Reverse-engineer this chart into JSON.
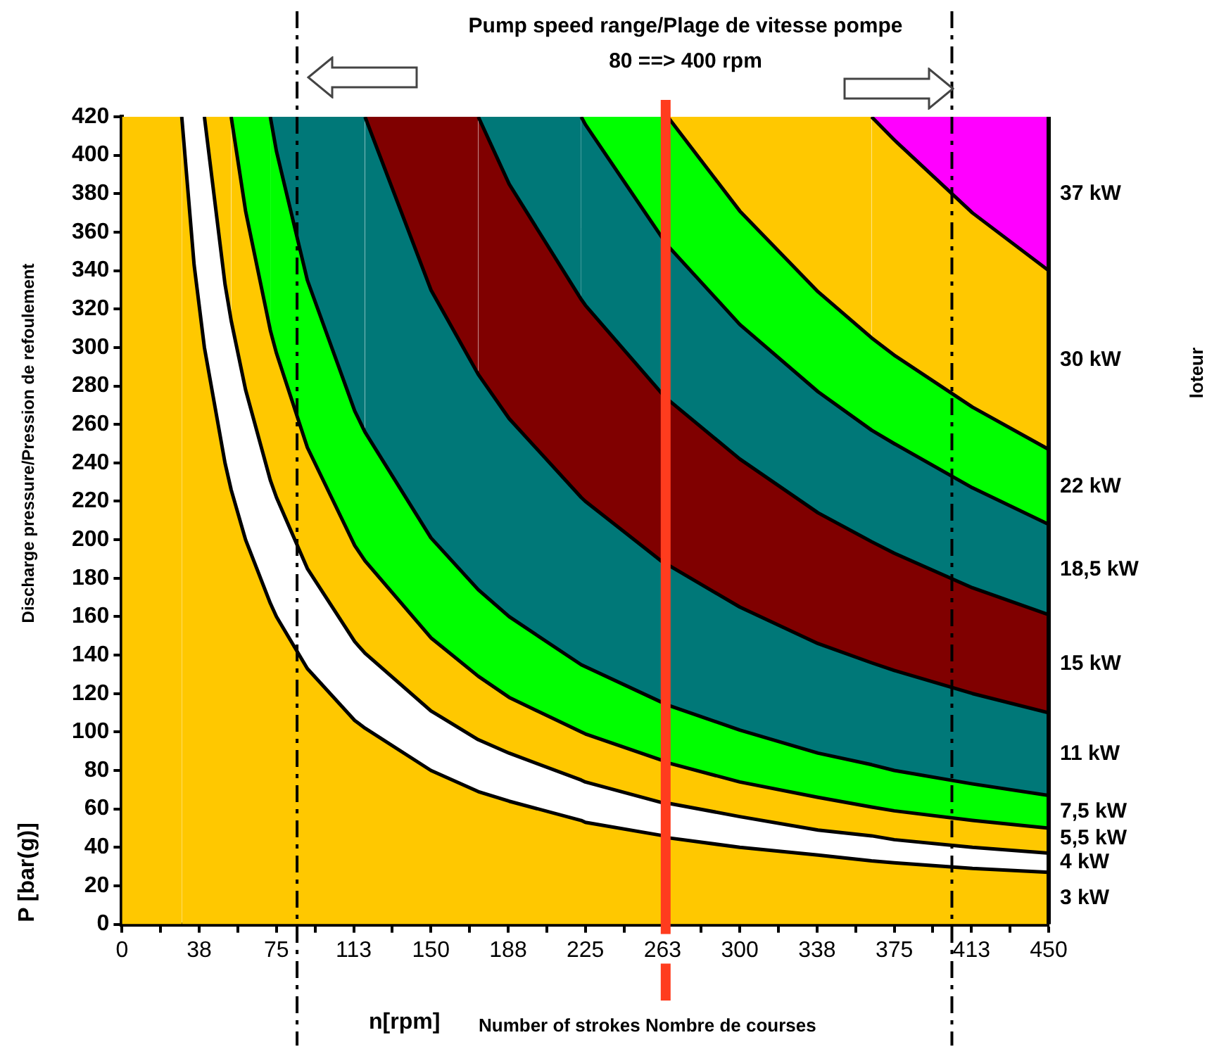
{
  "chart_data": {
    "type": "area",
    "stacked": true,
    "title": "Pump speed range/Plage de vitesse pompe",
    "subtitle": "80 ==> 400 rpm",
    "xlabel": "n[rpm]",
    "ylabel": "P [bar(g)]",
    "annotations": [
      "Number of strokes Nombre de courses",
      "Discharge pressure/Pression de refoulement",
      "loteur"
    ],
    "x": [
      0,
      29,
      35,
      40,
      50,
      53,
      60,
      72,
      75,
      90,
      113,
      118,
      150,
      173,
      188,
      223,
      225,
      263,
      265,
      300,
      338,
      364,
      375,
      413,
      450
    ],
    "series": [
      {
        "name": "3 kW",
        "color": "#ffc800",
        "values": [
          420,
          420,
          343,
          300,
          240,
          226,
          200,
          167,
          160,
          133,
          106,
          102,
          80,
          69,
          64,
          54,
          53,
          46,
          45,
          40,
          36,
          33,
          32,
          29,
          27
        ]
      },
      {
        "name": "4 kW",
        "color": "#ffffff",
        "values": [
          null,
          0,
          77,
          120,
          93,
          88,
          78,
          64,
          62,
          52,
          41,
          39,
          31,
          27,
          25,
          21,
          21,
          17,
          18,
          16,
          13,
          13,
          12,
          11,
          10
        ]
      },
      {
        "name": "5,5 kW",
        "color": "#ffc800",
        "values": [
          null,
          null,
          null,
          0,
          87,
          106,
          93,
          78,
          75,
          63,
          50,
          48,
          38,
          33,
          29,
          25,
          25,
          22,
          21,
          18,
          17,
          15,
          15,
          14,
          13
        ]
      },
      {
        "name": "7,5 kW",
        "color": "#00ff00",
        "values": [
          null,
          null,
          null,
          null,
          null,
          0,
          49,
          111,
          105,
          87,
          70,
          67,
          52,
          45,
          42,
          35,
          35,
          30,
          30,
          27,
          23,
          22,
          21,
          19,
          17
        ]
      },
      {
        "name": "11 kW",
        "color": "#007878",
        "values": [
          null,
          null,
          null,
          null,
          null,
          null,
          null,
          0,
          18,
          85,
          153,
          164,
          129,
          112,
          103,
          87,
          86,
          73,
          73,
          64,
          57,
          53,
          52,
          47,
          43
        ]
      },
      {
        "name": "15 kW",
        "color": "#800000",
        "values": [
          null,
          null,
          null,
          null,
          null,
          null,
          null,
          null,
          null,
          null,
          null,
          0,
          90,
          134,
          122,
          103,
          102,
          87,
          86,
          77,
          68,
          63,
          61,
          55,
          51
        ]
      },
      {
        "name": "18,5 kW",
        "color": "#007878",
        "values": [
          null,
          null,
          null,
          null,
          null,
          null,
          null,
          null,
          null,
          null,
          null,
          null,
          null,
          0,
          35,
          95,
          94,
          81,
          80,
          70,
          63,
          58,
          57,
          52,
          47
        ]
      },
      {
        "name": "22 kW",
        "color": "#00ff00",
        "values": [
          null,
          null,
          null,
          null,
          null,
          null,
          null,
          null,
          null,
          null,
          null,
          null,
          null,
          null,
          null,
          0,
          4,
          64,
          67,
          59,
          52,
          48,
          46,
          42,
          39
        ]
      },
      {
        "name": "30 kW",
        "color": "#ffc800",
        "values": [
          null,
          null,
          null,
          null,
          null,
          null,
          null,
          null,
          null,
          null,
          null,
          null,
          null,
          null,
          null,
          null,
          null,
          null,
          0,
          49,
          91,
          115,
          112,
          101,
          93
        ]
      },
      {
        "name": "37 kW",
        "color": "#ff00ff",
        "values": [
          null,
          null,
          null,
          null,
          null,
          null,
          null,
          null,
          null,
          null,
          null,
          null,
          null,
          null,
          null,
          null,
          null,
          null,
          null,
          null,
          null,
          0,
          12,
          50,
          80
        ]
      }
    ],
    "xlim": [
      0,
      450
    ],
    "ylim": [
      0,
      420
    ],
    "xticks": [
      0,
      {
        "value": 18.75,
        "label": null
      },
      {
        "value": 37.5,
        "label": "38"
      },
      {
        "value": 56.25,
        "label": null
      },
      75,
      {
        "value": 93.75,
        "label": null
      },
      {
        "value": 112.5,
        "label": "113"
      },
      {
        "value": 131.25,
        "label": null
      },
      150,
      {
        "value": 168.75,
        "label": null
      },
      {
        "value": 187.5,
        "label": "188"
      },
      {
        "value": 206.25,
        "label": null
      },
      225,
      {
        "value": 243.75,
        "label": null
      },
      {
        "value": 262.5,
        "label": "263"
      },
      {
        "value": 281.25,
        "label": null
      },
      300,
      {
        "value": 318.75,
        "label": null
      },
      {
        "value": 337.5,
        "label": "338"
      },
      {
        "value": 356.25,
        "label": null
      },
      375,
      {
        "value": 393.75,
        "label": null
      },
      {
        "value": 412.5,
        "label": "413"
      },
      {
        "value": 431.25,
        "label": null
      },
      450
    ],
    "yticks": [
      0,
      20,
      40,
      60,
      80,
      100,
      120,
      140,
      160,
      180,
      200,
      220,
      240,
      260,
      280,
      300,
      320,
      340,
      360,
      380,
      400,
      420
    ],
    "ref_lines": [
      {
        "axis": "x",
        "value": 85,
        "color": "#000000",
        "line_style": "dashed"
      },
      {
        "axis": "x",
        "value": 403,
        "color": "#000000",
        "line_style": "dashed"
      },
      {
        "axis": "x",
        "value": 264,
        "color": "#ff3c1e",
        "line_style": "solid"
      }
    ],
    "grid": false
  }
}
